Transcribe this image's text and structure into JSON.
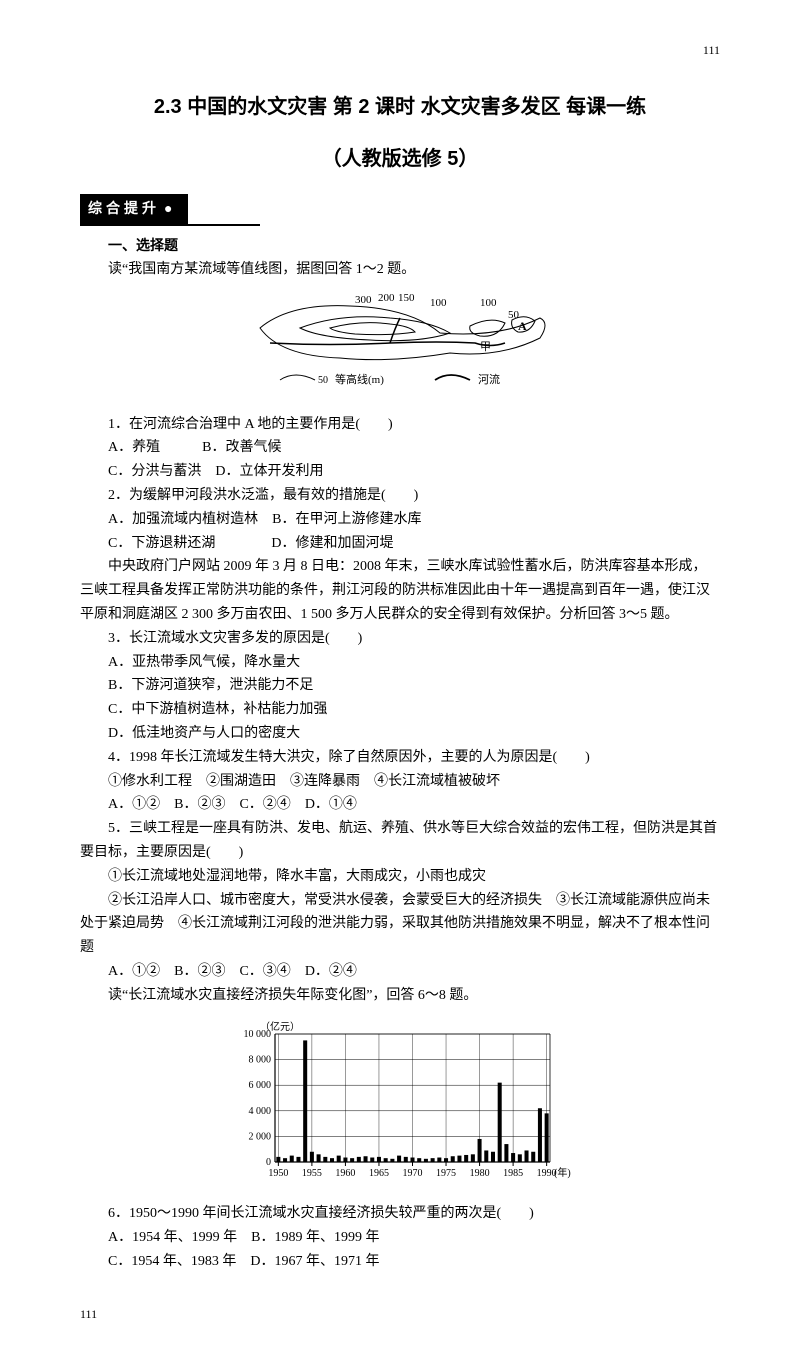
{
  "page_number_top": "111",
  "page_number_bottom": "111",
  "title_main": "2.3 中国的水文灾害 第 2 课时 水文灾害多发区 每课一练",
  "title_sub": "（人教版选修 5）",
  "section_banner": "综合提升",
  "section1_heading": "一、选择题",
  "intro1": "读“我国南方某流域等值线图，据图回答 1～2 题。",
  "map": {
    "contour_labels": [
      "300",
      "200",
      "150",
      "100",
      "100",
      "50"
    ],
    "point_label": "A",
    "point_label2": "甲",
    "legend_contour": "等高线(m)",
    "legend_river": "河流",
    "legend_50": "50",
    "line_color": "#000000",
    "bg": "#ffffff"
  },
  "q1": {
    "stem": "1．在河流综合治理中 A 地的主要作用是(　　)",
    "A": "A．养殖",
    "B": "B．改善气候",
    "C": "C．分洪与蓄洪",
    "D": "D．立体开发利用"
  },
  "q2": {
    "stem": "2．为缓解甲河段洪水泛滥，最有效的措施是(　　)",
    "A": "A．加强流域内植树造林",
    "B": "B．在甲河上游修建水库",
    "C": "C．下游退耕还湖",
    "D": "D．修建和加固河堤"
  },
  "passage2": "中央政府门户网站 2009 年 3 月 8 日电：2008 年末，三峡水库试验性蓄水后，防洪库容基本形成，三峡工程具备发挥正常防洪功能的条件，荆江河段的防洪标准因此由十年一遇提高到百年一遇，使江汉平原和洞庭湖区 2 300 多万亩农田、1 500 多万人民群众的安全得到有效保护。分析回答 3～5 题。",
  "q3": {
    "stem": "3．长江流域水文灾害多发的原因是(　　)",
    "A": "A．亚热带季风气候，降水量大",
    "B": "B．下游河道狭窄，泄洪能力不足",
    "C": "C．中下游植树造林，补枯能力加强",
    "D": "D．低洼地资产与人口的密度大"
  },
  "q4": {
    "stem": "4．1998 年长江流域发生特大洪灾，除了自然原因外，主要的人为原因是(　　)",
    "items": "①修水利工程　②围湖造田　③连降暴雨　④长江流域植被破坏",
    "A": "A．①②",
    "B": "B．②③",
    "C": "C．②④",
    "D": "D．①④"
  },
  "q5": {
    "stem": "5．三峡工程是一座具有防洪、发电、航运、养殖、供水等巨大综合效益的宏伟工程，但防洪是其首要目标，主要原因是(　　)",
    "item1": "①长江流域地处湿润地带，降水丰富，大雨成灾，小雨也成灾",
    "item2": "②长江沿岸人口、城市密度大，常受洪水侵袭，会蒙受巨大的经济损失　③长江流域能源供应尚未处于紧迫局势　④长江流域荆江河段的泄洪能力弱，采取其他防洪措施效果不明显，解决不了根本性问题",
    "A": "A．①②",
    "B": "B．②③",
    "C": "C．③④",
    "D": "D．②④"
  },
  "intro3": "读“长江流域水灾直接经济损失年际变化图”，回答 6～8 题。",
  "chart": {
    "type": "bar",
    "y_title": "（亿元）",
    "x_title": "(年)",
    "x_ticks": [
      1950,
      1955,
      1960,
      1965,
      1970,
      1975,
      1980,
      1985,
      1990
    ],
    "y_ticks": [
      0,
      2000,
      4000,
      6000,
      8000,
      10000
    ],
    "y_tick_labels": [
      "0",
      "2 000",
      "4 000",
      "6 000",
      "8 000",
      "10 000"
    ],
    "ylim": [
      0,
      10000
    ],
    "values": [
      400,
      300,
      500,
      400,
      9500,
      800,
      600,
      400,
      300,
      500,
      350,
      300,
      400,
      450,
      350,
      400,
      300,
      250,
      500,
      400,
      350,
      300,
      250,
      300,
      350,
      300,
      450,
      500,
      550,
      600,
      1800,
      900,
      800,
      6200,
      1400,
      700,
      600,
      900,
      800,
      4200,
      3800
    ],
    "bar_color": "#000000",
    "grid_color": "#000000",
    "bg": "#ffffff",
    "axis_fontsize": 10,
    "bar_width": 0.6
  },
  "q6": {
    "stem": "6．1950～1990 年间长江流域水灾直接经济损失较严重的两次是(　　)",
    "A": "A．1954 年、1999 年",
    "B": "B．1989 年、1999 年",
    "C": "C．1954 年、1983 年",
    "D": "D．1967 年、1971 年"
  }
}
